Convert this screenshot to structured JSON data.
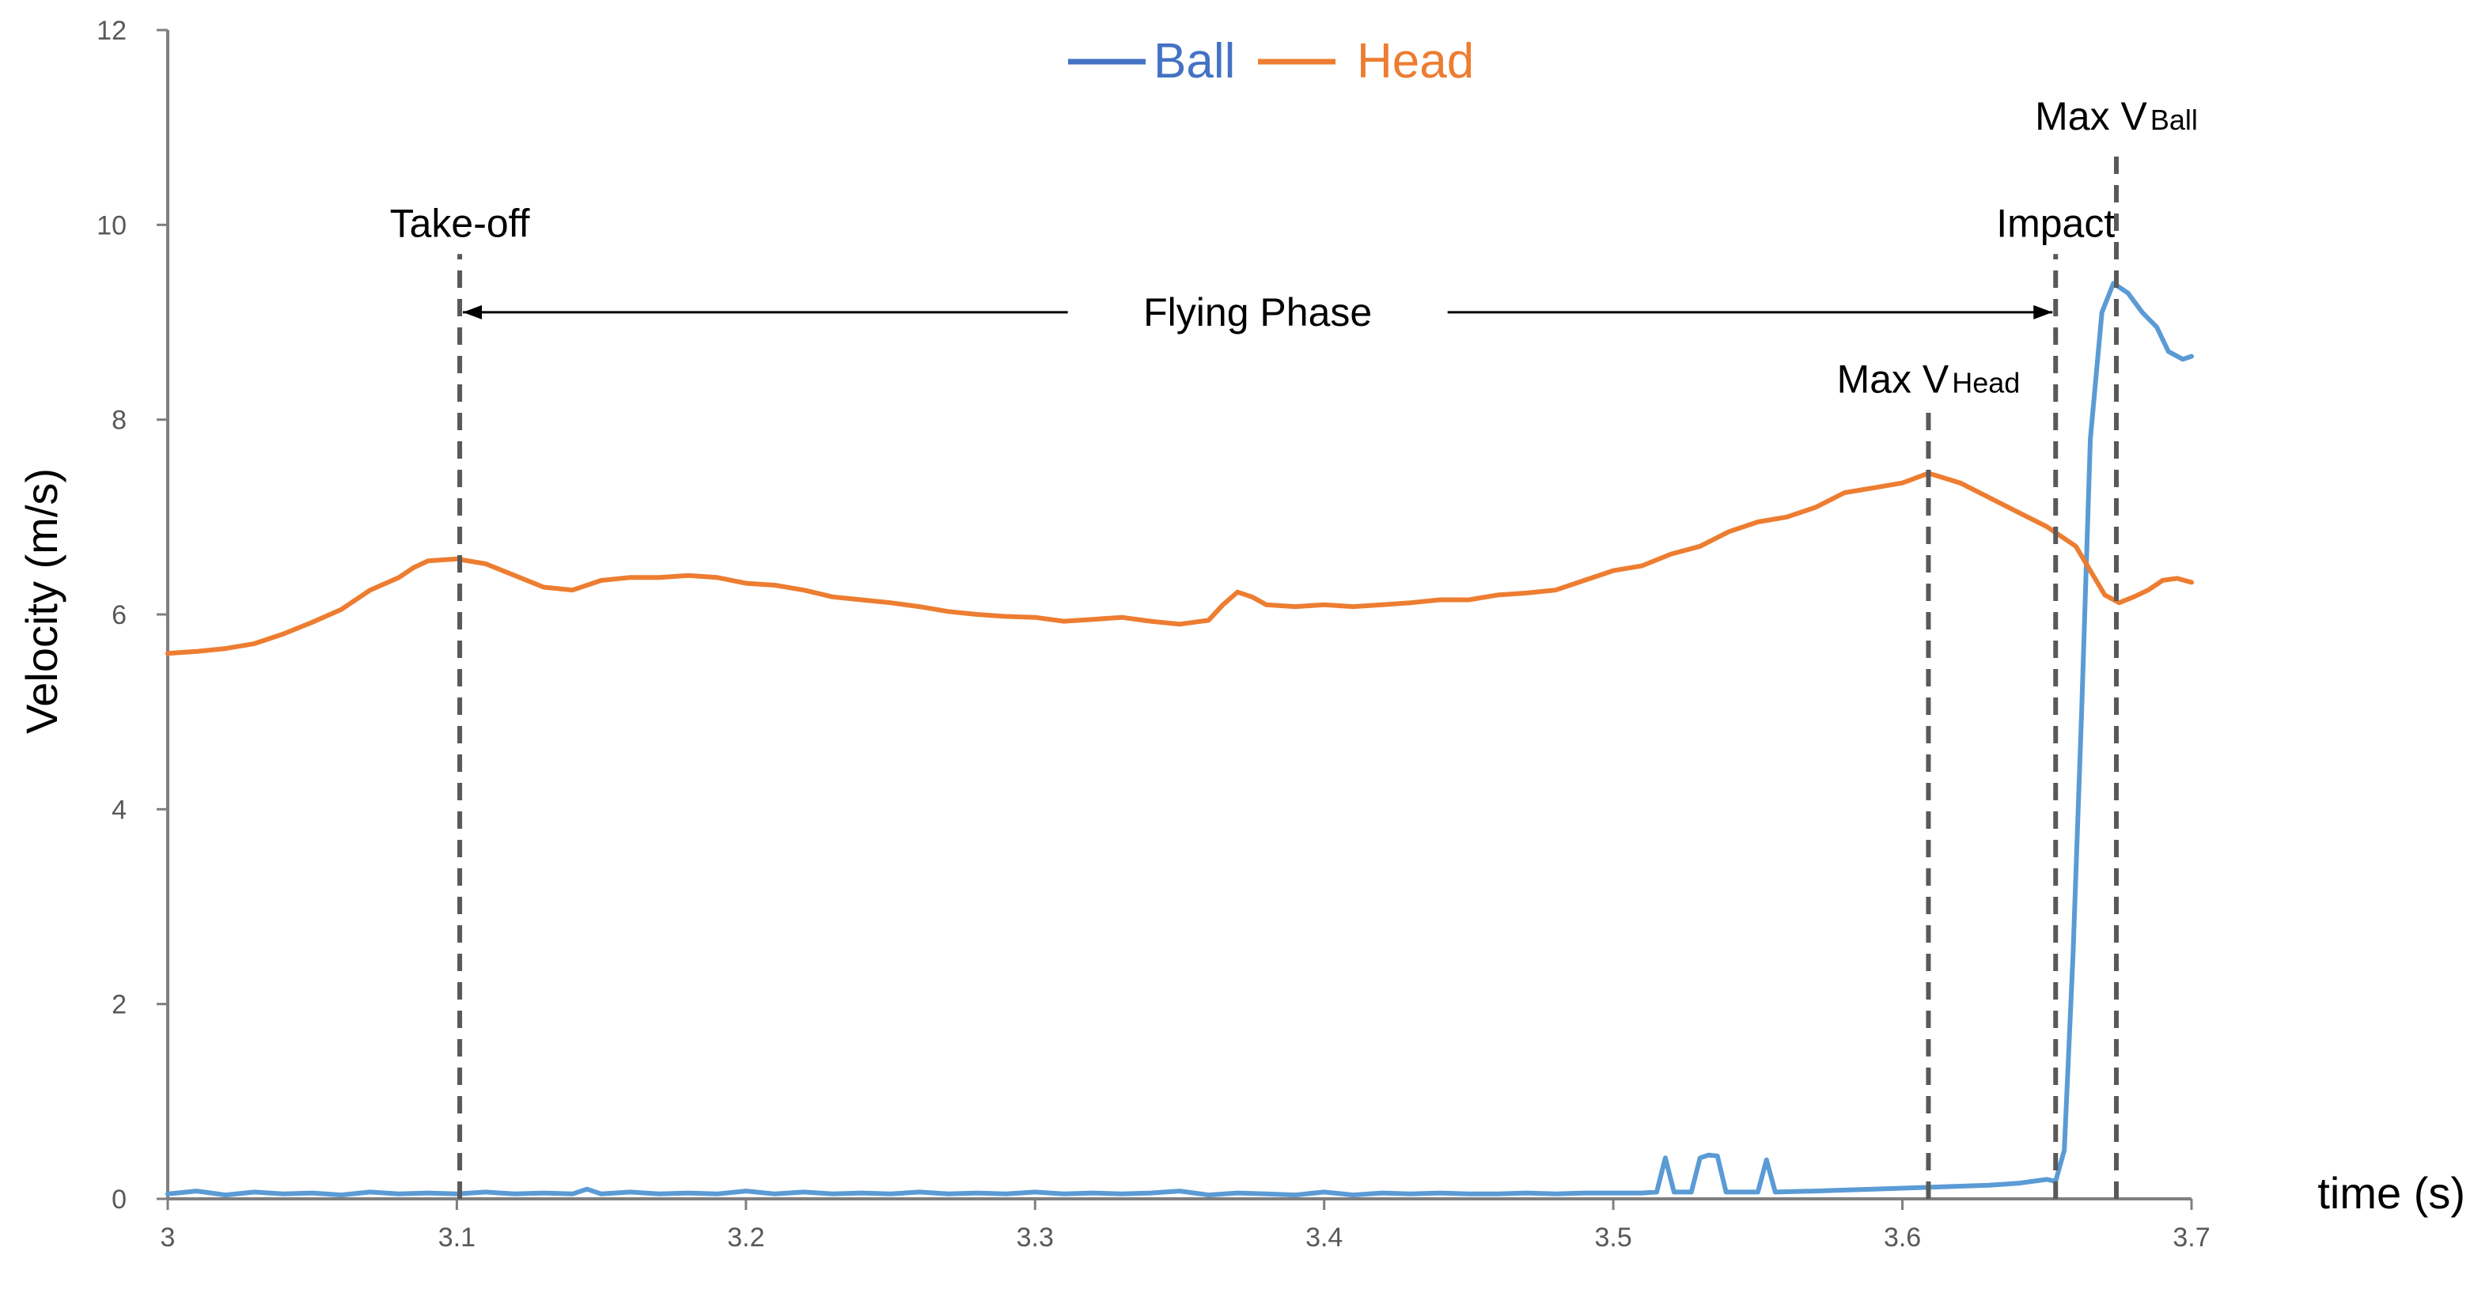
{
  "chart_data": {
    "type": "line",
    "xlabel": "time (s)",
    "ylabel": "Velocity (m/s)",
    "xlim": [
      3,
      3.7
    ],
    "ylim": [
      0,
      12
    ],
    "x_ticks": [
      "3",
      "3.1",
      "3.2",
      "3.3",
      "3.4",
      "3.5",
      "3.6",
      "3.7"
    ],
    "y_ticks": [
      "0",
      "2",
      "4",
      "6",
      "8",
      "10",
      "12"
    ],
    "grid": false,
    "legend": {
      "position": "top-center"
    },
    "series": [
      {
        "name": "Ball",
        "color": "#5B9BD5",
        "legend_color": "#4472C4",
        "points": [
          [
            3.0,
            0.05
          ],
          [
            3.01,
            0.08
          ],
          [
            3.02,
            0.04
          ],
          [
            3.03,
            0.07
          ],
          [
            3.04,
            0.05
          ],
          [
            3.05,
            0.06
          ],
          [
            3.06,
            0.04
          ],
          [
            3.07,
            0.07
          ],
          [
            3.08,
            0.05
          ],
          [
            3.09,
            0.06
          ],
          [
            3.1,
            0.05
          ],
          [
            3.11,
            0.07
          ],
          [
            3.12,
            0.05
          ],
          [
            3.13,
            0.06
          ],
          [
            3.14,
            0.05
          ],
          [
            3.145,
            0.1
          ],
          [
            3.15,
            0.05
          ],
          [
            3.16,
            0.07
          ],
          [
            3.17,
            0.05
          ],
          [
            3.18,
            0.06
          ],
          [
            3.19,
            0.05
          ],
          [
            3.2,
            0.08
          ],
          [
            3.21,
            0.05
          ],
          [
            3.22,
            0.07
          ],
          [
            3.23,
            0.05
          ],
          [
            3.24,
            0.06
          ],
          [
            3.25,
            0.05
          ],
          [
            3.26,
            0.07
          ],
          [
            3.27,
            0.05
          ],
          [
            3.28,
            0.06
          ],
          [
            3.29,
            0.05
          ],
          [
            3.3,
            0.07
          ],
          [
            3.31,
            0.05
          ],
          [
            3.32,
            0.06
          ],
          [
            3.33,
            0.05
          ],
          [
            3.34,
            0.06
          ],
          [
            3.35,
            0.08
          ],
          [
            3.36,
            0.04
          ],
          [
            3.37,
            0.06
          ],
          [
            3.38,
            0.05
          ],
          [
            3.39,
            0.04
          ],
          [
            3.4,
            0.07
          ],
          [
            3.41,
            0.04
          ],
          [
            3.42,
            0.06
          ],
          [
            3.43,
            0.05
          ],
          [
            3.44,
            0.06
          ],
          [
            3.45,
            0.05
          ],
          [
            3.46,
            0.05
          ],
          [
            3.47,
            0.06
          ],
          [
            3.48,
            0.05
          ],
          [
            3.49,
            0.06
          ],
          [
            3.5,
            0.06
          ],
          [
            3.51,
            0.06
          ],
          [
            3.515,
            0.07
          ],
          [
            3.518,
            0.42
          ],
          [
            3.521,
            0.07
          ],
          [
            3.527,
            0.07
          ],
          [
            3.53,
            0.42
          ],
          [
            3.533,
            0.45
          ],
          [
            3.536,
            0.44
          ],
          [
            3.539,
            0.07
          ],
          [
            3.55,
            0.07
          ],
          [
            3.553,
            0.4
          ],
          [
            3.556,
            0.07
          ],
          [
            3.57,
            0.08
          ],
          [
            3.58,
            0.09
          ],
          [
            3.59,
            0.1
          ],
          [
            3.6,
            0.11
          ],
          [
            3.61,
            0.12
          ],
          [
            3.62,
            0.13
          ],
          [
            3.63,
            0.14
          ],
          [
            3.64,
            0.16
          ],
          [
            3.65,
            0.2
          ],
          [
            3.653,
            0.18
          ],
          [
            3.656,
            0.5
          ],
          [
            3.659,
            2.5
          ],
          [
            3.662,
            5.0
          ],
          [
            3.665,
            7.8
          ],
          [
            3.669,
            9.1
          ],
          [
            3.673,
            9.4
          ],
          [
            3.678,
            9.3
          ],
          [
            3.683,
            9.1
          ],
          [
            3.688,
            8.95
          ],
          [
            3.692,
            8.7
          ],
          [
            3.697,
            8.62
          ],
          [
            3.7,
            8.65
          ]
        ]
      },
      {
        "name": "Head",
        "color": "#ED7D31",
        "legend_color": "#ED7D31",
        "points": [
          [
            3.0,
            5.6
          ],
          [
            3.01,
            5.62
          ],
          [
            3.02,
            5.65
          ],
          [
            3.03,
            5.7
          ],
          [
            3.04,
            5.8
          ],
          [
            3.05,
            5.92
          ],
          [
            3.06,
            6.05
          ],
          [
            3.07,
            6.25
          ],
          [
            3.08,
            6.38
          ],
          [
            3.085,
            6.48
          ],
          [
            3.09,
            6.55
          ],
          [
            3.1,
            6.57
          ],
          [
            3.11,
            6.52
          ],
          [
            3.12,
            6.4
          ],
          [
            3.13,
            6.28
          ],
          [
            3.14,
            6.25
          ],
          [
            3.15,
            6.35
          ],
          [
            3.16,
            6.38
          ],
          [
            3.17,
            6.38
          ],
          [
            3.18,
            6.4
          ],
          [
            3.19,
            6.38
          ],
          [
            3.2,
            6.32
          ],
          [
            3.21,
            6.3
          ],
          [
            3.22,
            6.25
          ],
          [
            3.23,
            6.18
          ],
          [
            3.24,
            6.15
          ],
          [
            3.25,
            6.12
          ],
          [
            3.26,
            6.08
          ],
          [
            3.27,
            6.03
          ],
          [
            3.28,
            6.0
          ],
          [
            3.29,
            5.98
          ],
          [
            3.3,
            5.97
          ],
          [
            3.31,
            5.93
          ],
          [
            3.32,
            5.95
          ],
          [
            3.33,
            5.97
          ],
          [
            3.34,
            5.93
          ],
          [
            3.35,
            5.9
          ],
          [
            3.36,
            5.94
          ],
          [
            3.365,
            6.1
          ],
          [
            3.37,
            6.23
          ],
          [
            3.375,
            6.18
          ],
          [
            3.38,
            6.1
          ],
          [
            3.39,
            6.08
          ],
          [
            3.4,
            6.1
          ],
          [
            3.41,
            6.08
          ],
          [
            3.42,
            6.1
          ],
          [
            3.43,
            6.12
          ],
          [
            3.44,
            6.15
          ],
          [
            3.45,
            6.15
          ],
          [
            3.46,
            6.2
          ],
          [
            3.47,
            6.22
          ],
          [
            3.48,
            6.25
          ],
          [
            3.49,
            6.35
          ],
          [
            3.5,
            6.45
          ],
          [
            3.51,
            6.5
          ],
          [
            3.52,
            6.62
          ],
          [
            3.53,
            6.7
          ],
          [
            3.54,
            6.85
          ],
          [
            3.55,
            6.95
          ],
          [
            3.56,
            7.0
          ],
          [
            3.57,
            7.1
          ],
          [
            3.58,
            7.25
          ],
          [
            3.59,
            7.3
          ],
          [
            3.6,
            7.35
          ],
          [
            3.609,
            7.45
          ],
          [
            3.62,
            7.35
          ],
          [
            3.63,
            7.2
          ],
          [
            3.64,
            7.05
          ],
          [
            3.65,
            6.9
          ],
          [
            3.66,
            6.7
          ],
          [
            3.665,
            6.45
          ],
          [
            3.67,
            6.2
          ],
          [
            3.675,
            6.12
          ],
          [
            3.68,
            6.18
          ],
          [
            3.685,
            6.25
          ],
          [
            3.69,
            6.35
          ],
          [
            3.695,
            6.37
          ],
          [
            3.7,
            6.33
          ]
        ]
      }
    ],
    "markers": [
      {
        "name": "take-off",
        "x": 3.101,
        "y_top": 9.7,
        "label": "Take-off",
        "label_sub": ""
      },
      {
        "name": "max-vhead",
        "x": 3.609,
        "y_top": 8.1,
        "label": "Max V",
        "label_sub": "Head"
      },
      {
        "name": "impact",
        "x": 3.653,
        "y_top": 9.7,
        "label": "Impact",
        "label_sub": ""
      },
      {
        "name": "max-vball",
        "x": 3.674,
        "y_top": 10.8,
        "label": "Max V",
        "label_sub": "Ball"
      }
    ],
    "phase": {
      "label": "Flying Phase",
      "x_start": 3.101,
      "x_end": 3.653,
      "y": 9.2
    }
  }
}
